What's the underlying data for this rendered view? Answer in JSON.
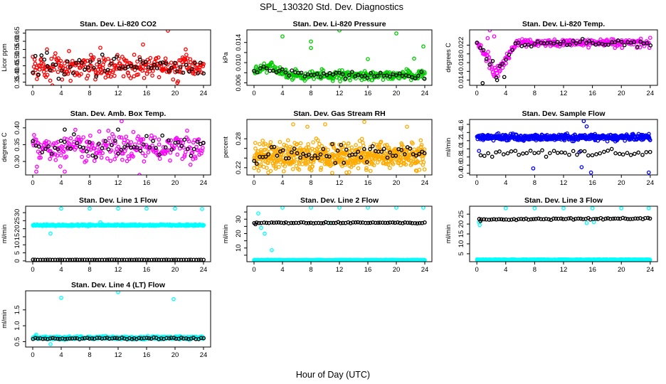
{
  "figure": {
    "title": "SPL_130320  Std. Dev. Diagnostics",
    "xlabel": "Hour of Day (UTC)"
  },
  "chart_data": [
    {
      "type": "scatter",
      "title": "Stan. Dev. Li-820 CO2",
      "ylabel": "Licor ppm",
      "xlim": [
        -1,
        25
      ],
      "ylim": [
        0.33,
        0.67
      ],
      "xticks": [
        0,
        4,
        8,
        12,
        16,
        20,
        24
      ],
      "yticks": [
        0.35,
        0.4,
        0.45,
        0.5,
        0.55,
        0.6,
        0.65
      ],
      "ytick_labels": [
        "0.35",
        "0.40",
        "0.45",
        "0.50",
        "0.55",
        "0.60",
        "0.65"
      ],
      "colors": {
        "main": "#ff0000",
        "secondary": "#000000"
      },
      "series": [
        {
          "color": "#ff0000",
          "pattern": {
            "n": 280,
            "x0": 0,
            "x1": 24,
            "center": 0.44,
            "spread": 0.05,
            "trend": 0
          },
          "outliers": [
            [
              19.0,
              0.665
            ],
            [
              15.5,
              0.58
            ],
            [
              2.0,
              0.55
            ],
            [
              9.5,
              0.56
            ],
            [
              21.5,
              0.55
            ]
          ]
        },
        {
          "color": "#000000",
          "pattern": {
            "n": 60,
            "x0": 0,
            "x1": 24,
            "center": 0.445,
            "spread": 0.04,
            "trend": 0
          },
          "outliers": [
            [
              2.0,
              0.53
            ]
          ]
        }
      ]
    },
    {
      "type": "scatter",
      "title": "Stan. Dev. Li-820 Pressure",
      "ylabel": "kPa",
      "xlim": [
        -1,
        25
      ],
      "ylim": [
        0.0055,
        0.0165
      ],
      "xticks": [
        0,
        4,
        8,
        12,
        16,
        20,
        24
      ],
      "yticks": [
        0.006,
        0.008,
        0.01,
        0.012,
        0.014
      ],
      "ytick_labels": [
        "0.006",
        "",
        "0.010",
        "",
        "0.014"
      ],
      "colors": {
        "main": "#00cc00",
        "secondary": "#000000"
      },
      "series": [
        {
          "color": "#00cc00",
          "pattern": {
            "n": 320,
            "x0": 0,
            "x1": 24,
            "center": 0.0075,
            "spread": 0.0006,
            "trend": 0
          },
          "bump": {
            "x": 2.0,
            "width": 1.8,
            "height": 0.0018
          },
          "outliers": [
            [
              4.0,
              0.0152
            ],
            [
              8.0,
              0.0142
            ],
            [
              8.0,
              0.0129
            ],
            [
              12.0,
              0.0164
            ],
            [
              16.0,
              0.0107
            ],
            [
              20.0,
              0.0158
            ],
            [
              23.8,
              0.0132
            ],
            [
              22.5,
              0.0108
            ]
          ]
        },
        {
          "color": "#000000",
          "pattern": {
            "n": 55,
            "x0": 0,
            "x1": 24,
            "center": 0.0076,
            "spread": 0.0005,
            "trend": 0
          },
          "bump": {
            "x": 2.0,
            "width": 1.6,
            "height": 0.0014
          },
          "outliers": []
        }
      ]
    },
    {
      "type": "scatter",
      "title": "Stan. Dev. Li-820 Temp.",
      "ylabel": "degrees C",
      "xlim": [
        -1,
        25
      ],
      "ylim": [
        0.0128,
        0.0255
      ],
      "xticks": [
        0,
        4,
        8,
        12,
        16,
        20,
        24
      ],
      "yticks": [
        0.014,
        0.016,
        0.018,
        0.02,
        0.022
      ],
      "ytick_labels": [
        "0.014",
        "",
        "0.018",
        "",
        "0.022"
      ],
      "colors": {
        "main": "#ff00ff",
        "secondary": "#000000"
      },
      "series": [
        {
          "color": "#ff00ff",
          "pattern": {
            "n": 260,
            "x0": 0,
            "x1": 24,
            "center": 0.0225,
            "spread": 0.0006,
            "trend": 0
          },
          "dip": {
            "x0": 0,
            "x1": 5.5,
            "low": 0.0155,
            "spread": 0.0018
          },
          "outliers": [
            [
              1.8,
              0.0254
            ],
            [
              1.5,
              0.0236
            ],
            [
              2.4,
              0.024
            ]
          ]
        },
        {
          "color": "#000000",
          "pattern": {
            "n": 55,
            "x0": 0,
            "x1": 24,
            "center": 0.0225,
            "spread": 0.0005,
            "trend": 0
          },
          "dip": {
            "x0": 0,
            "x1": 5.5,
            "low": 0.0158,
            "spread": 0.0012
          },
          "outliers": [
            [
              0.8,
              0.0133
            ],
            [
              2.8,
              0.014
            ],
            [
              3.8,
              0.0147
            ]
          ]
        }
      ]
    },
    {
      "type": "scatter",
      "title": "Stan. Dev. Amb. Box Temp.",
      "ylabel": "degrees C",
      "xlim": [
        -1,
        25
      ],
      "ylim": [
        0.26,
        0.425
      ],
      "xticks": [
        0,
        4,
        8,
        12,
        16,
        20,
        24
      ],
      "yticks": [
        0.3,
        0.35,
        0.4
      ],
      "ytick_labels": [
        "0.30",
        "0.35",
        "0.40"
      ],
      "colors": {
        "main": "#ff00ff",
        "secondary": "#000000"
      },
      "series": [
        {
          "color": "#ff00ff",
          "pattern": {
            "n": 260,
            "x0": 0,
            "x1": 24,
            "center": 0.34,
            "spread": 0.03,
            "trend": 0
          },
          "outliers": [
            [
              15.0,
              0.26
            ],
            [
              0.5,
              0.27
            ],
            [
              12.5,
              0.42
            ],
            [
              4.5,
              0.27
            ]
          ]
        },
        {
          "color": "#000000",
          "pattern": {
            "n": 55,
            "x0": 0,
            "x1": 24,
            "center": 0.345,
            "spread": 0.02,
            "trend": 0
          },
          "outliers": [
            [
              4.5,
              0.395
            ],
            [
              12.0,
              0.395
            ]
          ]
        }
      ]
    },
    {
      "type": "scatter",
      "title": "Stan. Dev. Gas Stream RH",
      "ylabel": "percent",
      "xlim": [
        -1,
        25
      ],
      "ylim": [
        0.205,
        0.32
      ],
      "xticks": [
        0,
        4,
        8,
        12,
        16,
        20,
        24
      ],
      "yticks": [
        0.22,
        0.24,
        0.26,
        0.28
      ],
      "ytick_labels": [
        "0.22",
        "",
        "",
        "0.28"
      ],
      "colors": {
        "main": "#ffaa00",
        "secondary": "#000000"
      },
      "series": [
        {
          "color": "#ffaa00",
          "pattern": {
            "n": 600,
            "x0": 0,
            "x1": 24,
            "center": 0.245,
            "spread": 0.018,
            "trend": 0
          },
          "outliers": [
            [
              5.5,
              0.31
            ],
            [
              7.5,
              0.305
            ],
            [
              10.0,
              0.31
            ],
            [
              15.5,
              0.315
            ],
            [
              21.5,
              0.305
            ],
            [
              2.0,
              0.21
            ],
            [
              13.0,
              0.21
            ]
          ]
        },
        {
          "color": "#000000",
          "pattern": {
            "n": 60,
            "x0": 0,
            "x1": 24,
            "center": 0.248,
            "spread": 0.012,
            "trend": 0
          },
          "outliers": []
        }
      ]
    },
    {
      "type": "scatter",
      "title": "Stan. Dev. Sample Flow",
      "ylabel": "ml/min",
      "xlim": [
        -1,
        25
      ],
      "ylim": [
        0.36,
        1.72
      ],
      "xticks": [
        0,
        4,
        8,
        12,
        16,
        20,
        24
      ],
      "yticks": [
        0.4,
        0.6,
        0.8,
        1.0,
        1.2,
        1.4,
        1.6
      ],
      "ytick_labels": [
        "0.4",
        "0.6",
        "0.8",
        "1.0",
        "1.2",
        "1.4",
        "1.6"
      ],
      "colors": {
        "main": "#0000ff",
        "secondary": "#000000"
      },
      "series": [
        {
          "color": "#0000ff",
          "pattern": {
            "n": 520,
            "x0": 0,
            "x1": 24,
            "center": 1.28,
            "spread": 0.05,
            "trend": 0
          },
          "outliers": [
            [
              14.8,
              1.68
            ],
            [
              15.2,
              1.55
            ],
            [
              14.5,
              0.55
            ],
            [
              15.8,
              0.42
            ],
            [
              23.8,
              0.42
            ],
            [
              7.8,
              0.52
            ],
            [
              0.3,
              0.95
            ],
            [
              14.2,
              0.92
            ]
          ]
        },
        {
          "color": "#000000",
          "pattern": {
            "n": 45,
            "x0": 0.5,
            "x1": 24,
            "center": 0.87,
            "spread": 0.05,
            "trend": 0.002
          },
          "outliers": []
        }
      ]
    },
    {
      "type": "scatter",
      "title": "Stan. Dev. Line 1 Flow",
      "ylabel": "ml/min",
      "xlim": [
        -1,
        25
      ],
      "ylim": [
        -0.5,
        34
      ],
      "xticks": [
        0,
        4,
        8,
        12,
        16,
        20,
        24
      ],
      "yticks": [
        0,
        5,
        10,
        15,
        20,
        25,
        30
      ],
      "ytick_labels": [
        "0",
        "5",
        "10",
        "15",
        "20",
        "25",
        "30"
      ],
      "colors": {
        "main": "#00ffff",
        "secondary": "#000000"
      },
      "series": [
        {
          "color": "#00ffff",
          "pattern": {
            "n": 520,
            "x0": 0,
            "x1": 24,
            "center": 22.2,
            "spread": 0.3,
            "trend": 0
          },
          "outliers": [
            [
              4.0,
              32.5
            ],
            [
              8.0,
              32.5
            ],
            [
              12.0,
              32.5
            ],
            [
              16.0,
              32.5
            ],
            [
              20.0,
              32.5
            ],
            [
              23.8,
              32.3
            ],
            [
              2.5,
              17.0
            ],
            [
              9.5,
              24.0
            ]
          ]
        },
        {
          "color": "#000000",
          "pattern": {
            "n": 70,
            "x0": 0,
            "x1": 24,
            "center": 0.7,
            "spread": 0.05,
            "trend": 0
          },
          "outliers": []
        }
      ]
    },
    {
      "type": "scatter",
      "title": "Stan. Dev. Line 2 Flow",
      "ylabel": "ml/min",
      "xlim": [
        -1,
        25
      ],
      "ylim": [
        0.5,
        39
      ],
      "xticks": [
        0,
        4,
        8,
        12,
        16,
        20,
        24
      ],
      "yticks": [
        5,
        10,
        15,
        20,
        25,
        30,
        35
      ],
      "ytick_labels": [
        "",
        "10",
        "",
        "20",
        "",
        "30",
        ""
      ],
      "colors": {
        "main": "#00ffff",
        "secondary": "#000000"
      },
      "series": [
        {
          "color": "#00ffff",
          "pattern": {
            "n": 520,
            "x0": 0,
            "x1": 24,
            "center": 1.6,
            "spread": 0.15,
            "trend": 0
          },
          "outliers": [
            [
              4.0,
              38.0
            ],
            [
              8.0,
              38.0
            ],
            [
              12.0,
              38.0
            ],
            [
              16.0,
              38.0
            ],
            [
              20.0,
              38.0
            ],
            [
              23.8,
              38.0
            ],
            [
              0.6,
              34.0
            ],
            [
              1.0,
              24.0
            ],
            [
              1.5,
              20.0
            ],
            [
              2.5,
              8.5
            ],
            [
              10.5,
              27.5
            ]
          ]
        },
        {
          "color": "#000000",
          "pattern": {
            "n": 70,
            "x0": 0,
            "x1": 24,
            "center": 27.5,
            "spread": 0.25,
            "trend": 0
          },
          "outliers": [
            [
              0.2,
              26.5
            ]
          ]
        }
      ]
    },
    {
      "type": "scatter",
      "title": "Stan. Dev. Line 3 Flow",
      "ylabel": "ml/min",
      "xlim": [
        -1,
        25
      ],
      "ylim": [
        1.0,
        29
      ],
      "xticks": [
        0,
        4,
        8,
        12,
        16,
        20,
        24
      ],
      "yticks": [
        5,
        10,
        15,
        20,
        25
      ],
      "ytick_labels": [
        "5",
        "10",
        "15",
        "20",
        "25"
      ],
      "colors": {
        "main": "#00ffff",
        "secondary": "#000000"
      },
      "series": [
        {
          "color": "#00ffff",
          "pattern": {
            "n": 520,
            "x0": 0,
            "x1": 24,
            "center": 2.0,
            "spread": 0.12,
            "trend": 0
          },
          "outliers": [
            [
              4.0,
              28.0
            ],
            [
              8.0,
              28.0
            ],
            [
              12.0,
              28.0
            ],
            [
              16.0,
              28.0
            ],
            [
              20.0,
              28.0
            ],
            [
              23.8,
              28.0
            ],
            [
              0.3,
              21.0
            ],
            [
              0.4,
              19.5
            ],
            [
              15.2,
              20.5
            ],
            [
              16.2,
              21.0
            ]
          ]
        },
        {
          "color": "#000000",
          "pattern": {
            "n": 70,
            "x0": 0.3,
            "x1": 24,
            "center": 22.3,
            "spread": 0.25,
            "trend": 0.02
          },
          "outliers": [
            [
              0.5,
              21.5
            ]
          ]
        }
      ]
    },
    {
      "type": "scatter",
      "title": "Stan. Dev. Line 4 (LT) Flow",
      "ylabel": "ml/min",
      "xlim": [
        -1,
        25
      ],
      "ylim": [
        0.33,
        2.1
      ],
      "xticks": [
        0,
        4,
        8,
        12,
        16,
        20,
        24
      ],
      "yticks": [
        0.5,
        1.0,
        1.5
      ],
      "ytick_labels": [
        "0.5",
        "1.0",
        "1.5"
      ],
      "colors": {
        "main": "#00ffff",
        "secondary": "#000000"
      },
      "series": [
        {
          "color": "#00ffff",
          "pattern": {
            "n": 480,
            "x0": 0,
            "x1": 24,
            "center": 0.62,
            "spread": 0.03,
            "trend": 0
          },
          "outliers": [
            [
              4.0,
              1.88
            ],
            [
              12.0,
              2.06
            ],
            [
              19.8,
              1.84
            ],
            [
              0.5,
              0.72
            ],
            [
              2.5,
              0.42
            ],
            [
              23.5,
              0.65
            ]
          ]
        },
        {
          "color": "#000000",
          "pattern": {
            "n": 70,
            "x0": 0,
            "x1": 24,
            "center": 0.6,
            "spread": 0.02,
            "trend": 0
          },
          "outliers": []
        }
      ]
    }
  ]
}
